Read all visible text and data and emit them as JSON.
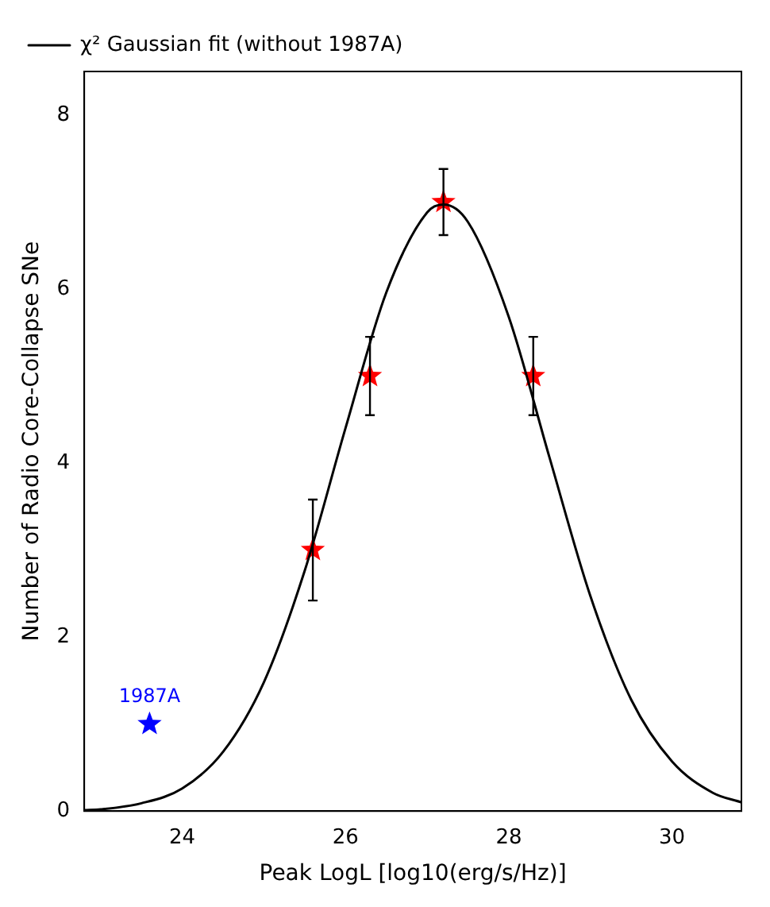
{
  "chart_data": {
    "type": "scatter",
    "xlabel": "Peak LogL [log10(erg/s/Hz)]",
    "ylabel": "Number of Radio Core-Collapse SNe",
    "xlim": [
      22.8,
      30.85
    ],
    "xticks": [
      24,
      26,
      28,
      30
    ],
    "ylim": [
      0,
      8.5
    ],
    "yticks": [
      0,
      2,
      4,
      6,
      8
    ],
    "grid": false,
    "legend": "top left",
    "annotations": [
      {
        "text": "1987A",
        "x": 23.6,
        "y": 1
      }
    ],
    "series": [
      {
        "name": "χ² Gaussian fit (without 1987A)",
        "type": "line",
        "color": "#000000",
        "marker": "none",
        "line_style": "solid",
        "x": [
          22.8,
          23.0,
          23.5,
          24.0,
          24.5,
          25.0,
          25.5,
          26.0,
          26.5,
          27.0,
          27.2,
          27.5,
          28.0,
          28.5,
          29.0,
          29.5,
          30.0,
          30.5,
          30.85
        ],
        "values": [
          0.01,
          0.02,
          0.09,
          0.26,
          0.68,
          1.48,
          2.76,
          4.4,
          5.96,
          6.88,
          6.97,
          6.77,
          5.68,
          4.06,
          2.47,
          1.28,
          0.57,
          0.21,
          0.1
        ]
      },
      {
        "type": "scatter",
        "color": "#ff0000",
        "marker": "star",
        "x": [
          25.6,
          26.3,
          27.2,
          28.3
        ],
        "values": [
          3,
          5,
          7,
          5
        ],
        "errors": [
          0.58,
          0.45,
          0.38,
          0.45
        ]
      },
      {
        "type": "scatter",
        "color": "#0000ff",
        "marker": "star",
        "x": [
          23.6
        ],
        "values": [
          1
        ]
      }
    ]
  }
}
